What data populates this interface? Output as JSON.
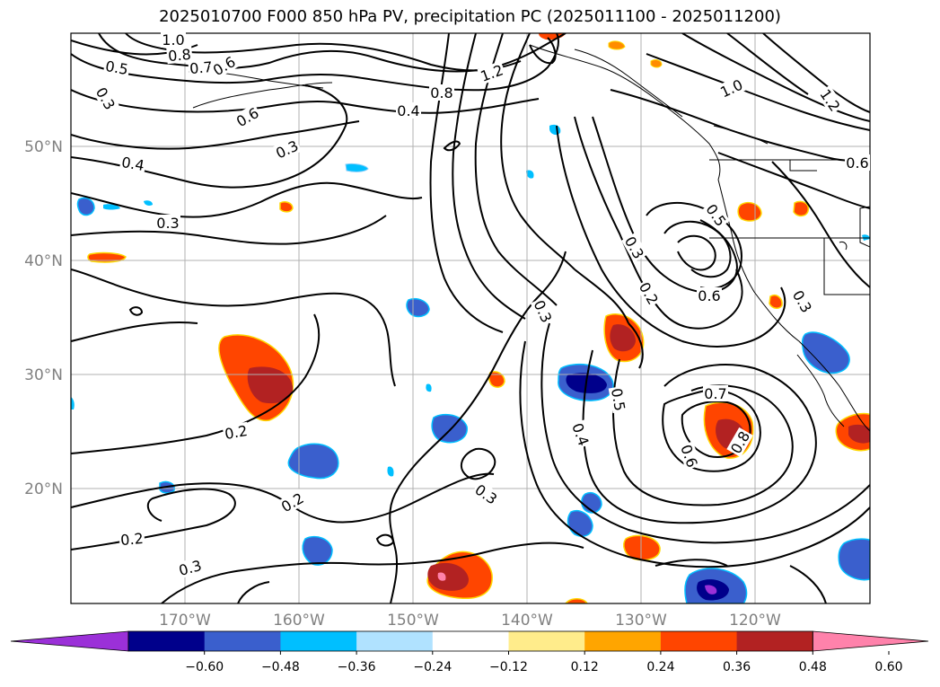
{
  "title": "2025010700 F000 850 hPa PV, precipitation PC (2025011100 - 2025011200)",
  "map": {
    "lat_labels": [
      "50°N",
      "40°N",
      "30°N",
      "20°N"
    ],
    "lon_labels": [
      "170°W",
      "160°W",
      "150°W",
      "140°W",
      "130°W",
      "120°W"
    ],
    "contour_labels": [
      "1.0",
      "0.8",
      "0.7",
      "0.6",
      "0.5",
      "0.3",
      "0.6",
      "0.3",
      "0.4",
      "0.3",
      "1.2",
      "0.8",
      "0.4",
      "1.0",
      "1.2",
      "0.6",
      "0.5",
      "0.3",
      "0.2",
      "0.3",
      "0.6",
      "0.3",
      "0.7",
      "0.8",
      "0.6",
      "0.5",
      "0.4",
      "0.2",
      "0.2",
      "0.3",
      "0.2",
      "0.3"
    ]
  },
  "colorbar": {
    "colors": [
      "#9b30d8",
      "#00008b",
      "#3a5fcd",
      "#00bfff",
      "#b0e2ff",
      "#ffffff",
      "#ffec8b",
      "#ffa500",
      "#ff4500",
      "#b22222",
      "#ff82ab"
    ],
    "tick_labels": [
      "−0.60",
      "−0.48",
      "−0.36",
      "−0.24",
      "−0.12",
      "0.12",
      "0.24",
      "0.36",
      "0.48",
      "0.60"
    ]
  }
}
